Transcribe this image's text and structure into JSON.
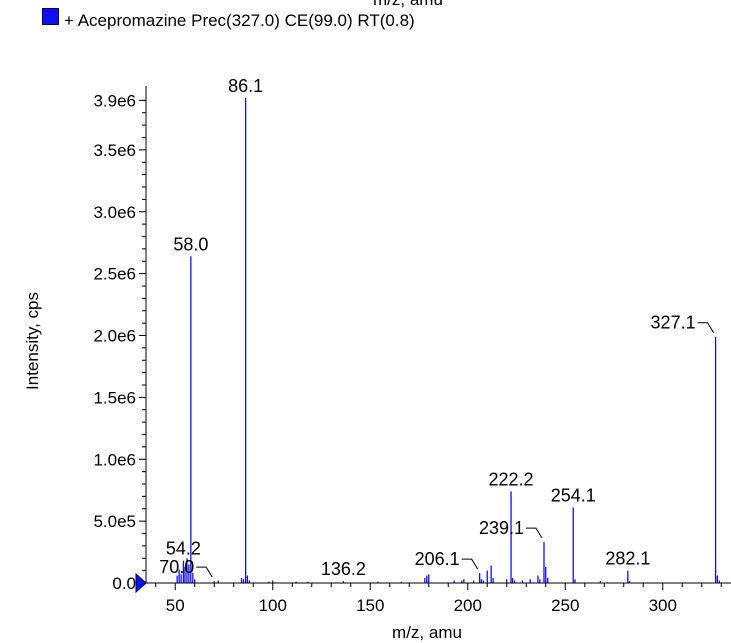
{
  "header": {
    "cut_xlabel": "m/z, amu",
    "legend_label": "+ Acepromazine Prec(327.0) CE(99.0) RT(0.8)",
    "legend_color": "#1010ee"
  },
  "chart_data": {
    "type": "bar",
    "title": "",
    "xlabel": "m/z, amu",
    "ylabel": "Intensity, cps",
    "xlim": [
      35,
      335
    ],
    "ylim": [
      0,
      4000000
    ],
    "xticks": [
      {
        "value": 50,
        "label": "50"
      },
      {
        "value": 100,
        "label": "100"
      },
      {
        "value": 150,
        "label": "150"
      },
      {
        "value": 200,
        "label": "200"
      },
      {
        "value": 250,
        "label": "250"
      },
      {
        "value": 300,
        "label": "300"
      }
    ],
    "yticks": [
      {
        "value": 0,
        "label": "0.0"
      },
      {
        "value": 500000,
        "label": "5.0e5"
      },
      {
        "value": 1000000,
        "label": "1.0e6"
      },
      {
        "value": 1500000,
        "label": "1.5e6"
      },
      {
        "value": 2000000,
        "label": "2.0e6"
      },
      {
        "value": 2500000,
        "label": "2.5e6"
      },
      {
        "value": 3000000,
        "label": "3.0e6"
      },
      {
        "value": 3500000,
        "label": "3.5e6"
      },
      {
        "value": 3900000,
        "label": "3.9e6"
      }
    ],
    "grid": false,
    "legend_placement": "top-left",
    "series_color": "#1010ee",
    "peaks": [
      {
        "x": 51.0,
        "y": 60000
      },
      {
        "x": 52.0,
        "y": 110000
      },
      {
        "x": 53.0,
        "y": 70000
      },
      {
        "x": 54.2,
        "y": 180000
      },
      {
        "x": 55.0,
        "y": 130000
      },
      {
        "x": 56.0,
        "y": 200000
      },
      {
        "x": 57.0,
        "y": 150000
      },
      {
        "x": 58.0,
        "y": 2640000
      },
      {
        "x": 59.0,
        "y": 80000
      },
      {
        "x": 60.0,
        "y": 30000
      },
      {
        "x": 70.0,
        "y": 15000
      },
      {
        "x": 72.0,
        "y": 20000
      },
      {
        "x": 84.0,
        "y": 40000
      },
      {
        "x": 85.0,
        "y": 30000
      },
      {
        "x": 86.1,
        "y": 3920000
      },
      {
        "x": 87.0,
        "y": 60000
      },
      {
        "x": 88.0,
        "y": 20000
      },
      {
        "x": 98.0,
        "y": 10000
      },
      {
        "x": 100.0,
        "y": 20000
      },
      {
        "x": 112.0,
        "y": 10000
      },
      {
        "x": 118.0,
        "y": 10000
      },
      {
        "x": 136.2,
        "y": 15000
      },
      {
        "x": 154.0,
        "y": 10000
      },
      {
        "x": 166.0,
        "y": 10000
      },
      {
        "x": 178.0,
        "y": 40000
      },
      {
        "x": 179.0,
        "y": 60000
      },
      {
        "x": 180.0,
        "y": 70000
      },
      {
        "x": 193.0,
        "y": 20000
      },
      {
        "x": 197.0,
        "y": 20000
      },
      {
        "x": 198.0,
        "y": 30000
      },
      {
        "x": 203.0,
        "y": 20000
      },
      {
        "x": 206.1,
        "y": 80000
      },
      {
        "x": 207.0,
        "y": 30000
      },
      {
        "x": 208.0,
        "y": 20000
      },
      {
        "x": 210.0,
        "y": 100000
      },
      {
        "x": 212.0,
        "y": 140000
      },
      {
        "x": 213.0,
        "y": 40000
      },
      {
        "x": 220.0,
        "y": 30000
      },
      {
        "x": 222.2,
        "y": 740000
      },
      {
        "x": 223.0,
        "y": 40000
      },
      {
        "x": 224.0,
        "y": 20000
      },
      {
        "x": 228.0,
        "y": 20000
      },
      {
        "x": 232.0,
        "y": 30000
      },
      {
        "x": 236.0,
        "y": 60000
      },
      {
        "x": 237.0,
        "y": 30000
      },
      {
        "x": 239.1,
        "y": 330000
      },
      {
        "x": 240.0,
        "y": 130000
      },
      {
        "x": 241.0,
        "y": 40000
      },
      {
        "x": 254.1,
        "y": 610000
      },
      {
        "x": 255.0,
        "y": 30000
      },
      {
        "x": 268.0,
        "y": 15000
      },
      {
        "x": 282.1,
        "y": 100000
      },
      {
        "x": 283.0,
        "y": 15000
      },
      {
        "x": 327.1,
        "y": 1990000
      },
      {
        "x": 328.0,
        "y": 60000
      },
      {
        "x": 329.0,
        "y": 20000
      }
    ],
    "annotations": [
      {
        "label": "86.1",
        "x": 86.1,
        "y": 3920000,
        "leader": false
      },
      {
        "label": "58.0",
        "x": 58.0,
        "y": 2640000,
        "leader": false
      },
      {
        "label": "327.1",
        "x": 327.1,
        "y": 1990000,
        "leader": true
      },
      {
        "label": "222.2",
        "x": 222.2,
        "y": 740000,
        "leader": false
      },
      {
        "label": "254.1",
        "x": 254.1,
        "y": 610000,
        "leader": false
      },
      {
        "label": "239.1",
        "x": 239.1,
        "y": 330000,
        "leader": true
      },
      {
        "label": "282.1",
        "x": 282.1,
        "y": 100000,
        "leader": false
      },
      {
        "label": "206.1",
        "x": 206.1,
        "y": 80000,
        "leader": true
      },
      {
        "label": "54.2",
        "x": 54.2,
        "y": 180000,
        "leader": false
      },
      {
        "label": "70.0",
        "x": 70.0,
        "y": 15000,
        "leader": true
      },
      {
        "label": "136.2",
        "x": 136.2,
        "y": 15000,
        "leader": false
      }
    ]
  }
}
